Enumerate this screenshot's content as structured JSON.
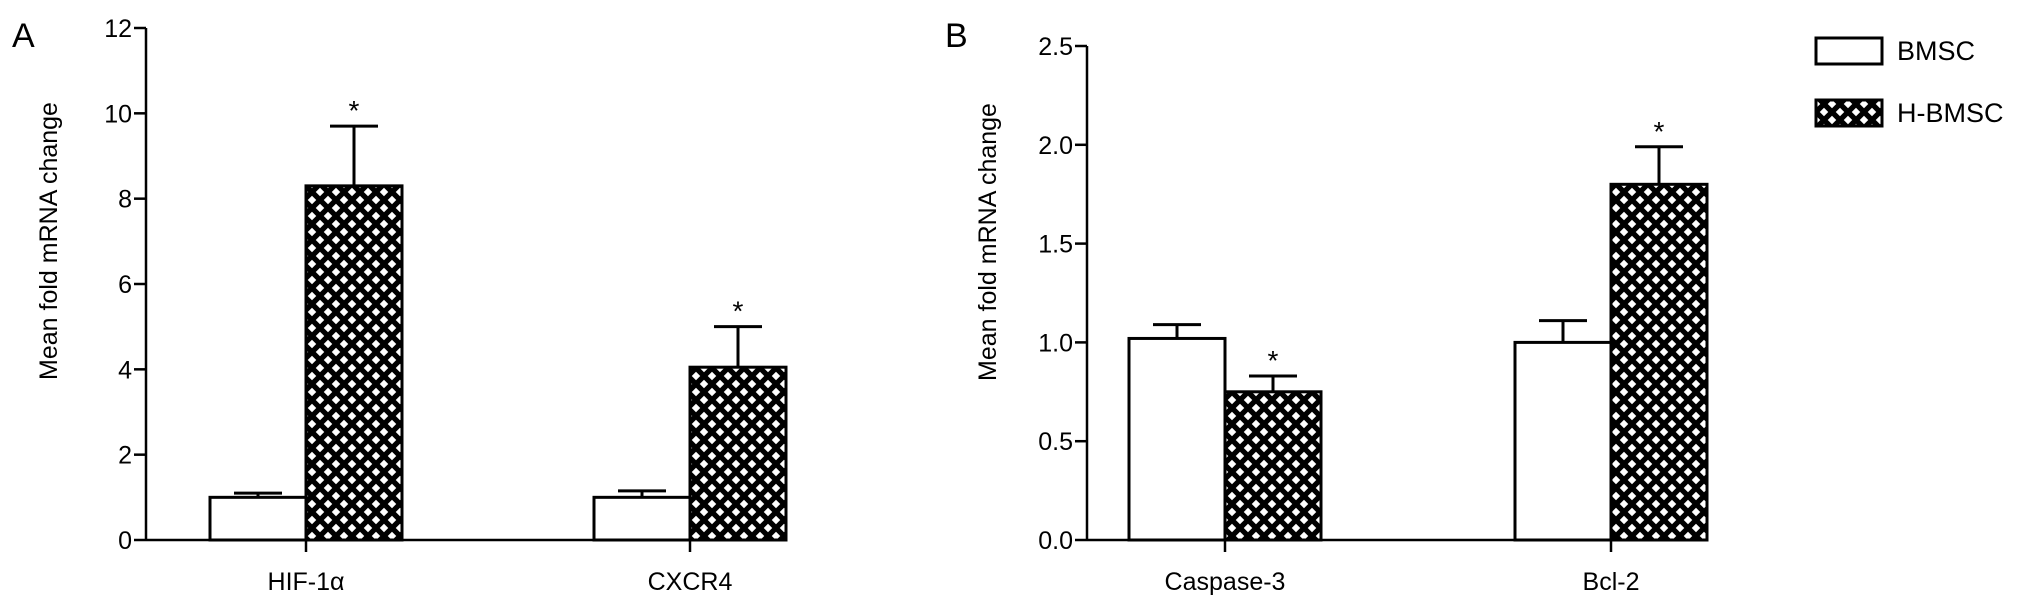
{
  "legend": {
    "items": [
      {
        "label": "BMSC",
        "pattern": "open"
      },
      {
        "label": "H-BMSC",
        "pattern": "crosshatch"
      }
    ]
  },
  "colors": {
    "stroke": "#000000",
    "open_fill": "#ffffff",
    "hatch_fill": "#000000"
  },
  "chart_data": [
    {
      "type": "bar",
      "panel_label": "A",
      "ylabel": "Mean fold mRNA change",
      "xlabel": "",
      "ylim": [
        0,
        12
      ],
      "yticks": [
        "0",
        "2",
        "4",
        "6",
        "8",
        "10",
        "12"
      ],
      "categories": [
        "HIF-1α",
        "CXCR4"
      ],
      "series": [
        {
          "name": "BMSC",
          "values": [
            1.0,
            1.0
          ],
          "errors": [
            0.1,
            0.15
          ]
        },
        {
          "name": "H-BMSC",
          "values": [
            8.3,
            4.05
          ],
          "errors": [
            1.4,
            0.95
          ]
        }
      ],
      "significance": [
        [
          "",
          "*"
        ],
        [
          "",
          "*"
        ]
      ],
      "grid": false
    },
    {
      "type": "bar",
      "panel_label": "B",
      "ylabel": "Mean fold mRNA change",
      "xlabel": "",
      "ylim": [
        0,
        2.5
      ],
      "yticks": [
        "0.0",
        "0.5",
        "1.0",
        "1.5",
        "2.0",
        "2.5"
      ],
      "categories": [
        "Caspase-3",
        "Bcl-2"
      ],
      "series": [
        {
          "name": "BMSC",
          "values": [
            1.02,
            1.0
          ],
          "errors": [
            0.07,
            0.11
          ]
        },
        {
          "name": "H-BMSC",
          "values": [
            0.75,
            1.8
          ],
          "errors": [
            0.08,
            0.19
          ]
        }
      ],
      "significance": [
        [
          "",
          "*"
        ],
        [
          "",
          "*"
        ]
      ],
      "legend_position": "top-right",
      "grid": false
    }
  ]
}
